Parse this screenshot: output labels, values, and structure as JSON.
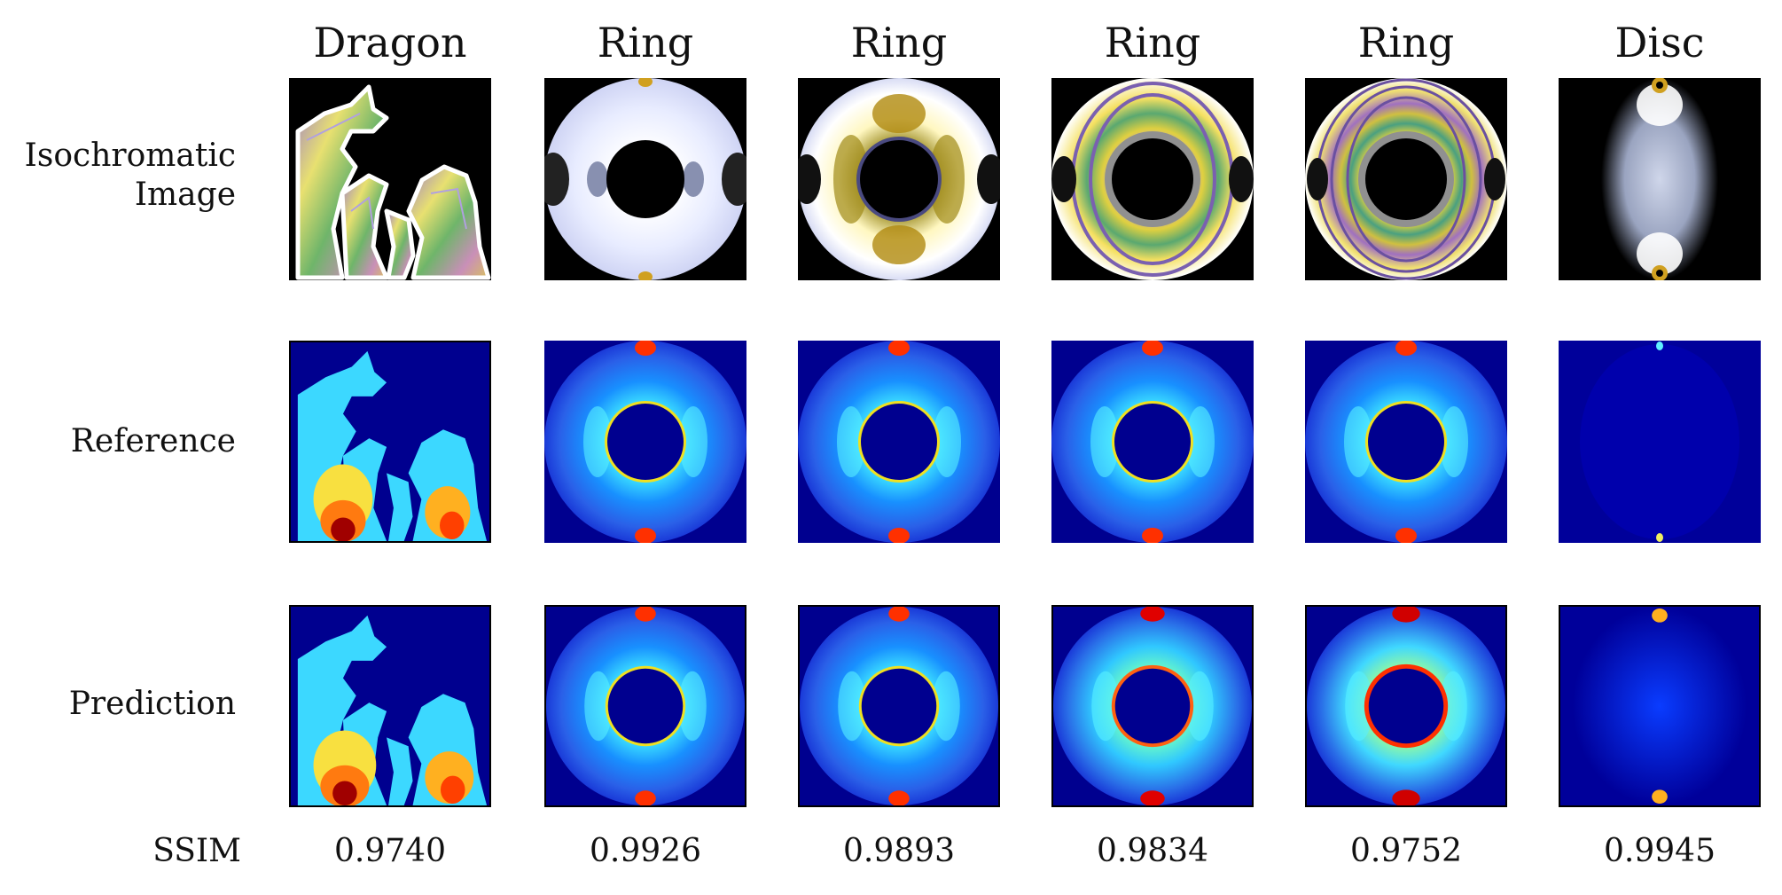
{
  "columns": [
    {
      "title": "Dragon",
      "ssim": "0.9740"
    },
    {
      "title": "Ring",
      "ssim": "0.9926"
    },
    {
      "title": "Ring",
      "ssim": "0.9893"
    },
    {
      "title": "Ring",
      "ssim": "0.9834"
    },
    {
      "title": "Ring",
      "ssim": "0.9752"
    },
    {
      "title": "Disc",
      "ssim": "0.9945"
    }
  ],
  "rows": {
    "isochromatic_line1": "Isochromatic",
    "isochromatic_line2": "Image",
    "reference": "Reference",
    "prediction": "Prediction",
    "ssim": "SSIM"
  },
  "colors": {
    "background_dark": "#000000",
    "jet_low": "#00008f",
    "jet_mid": "#00c8ff",
    "jet_high": "#ff2a00"
  }
}
